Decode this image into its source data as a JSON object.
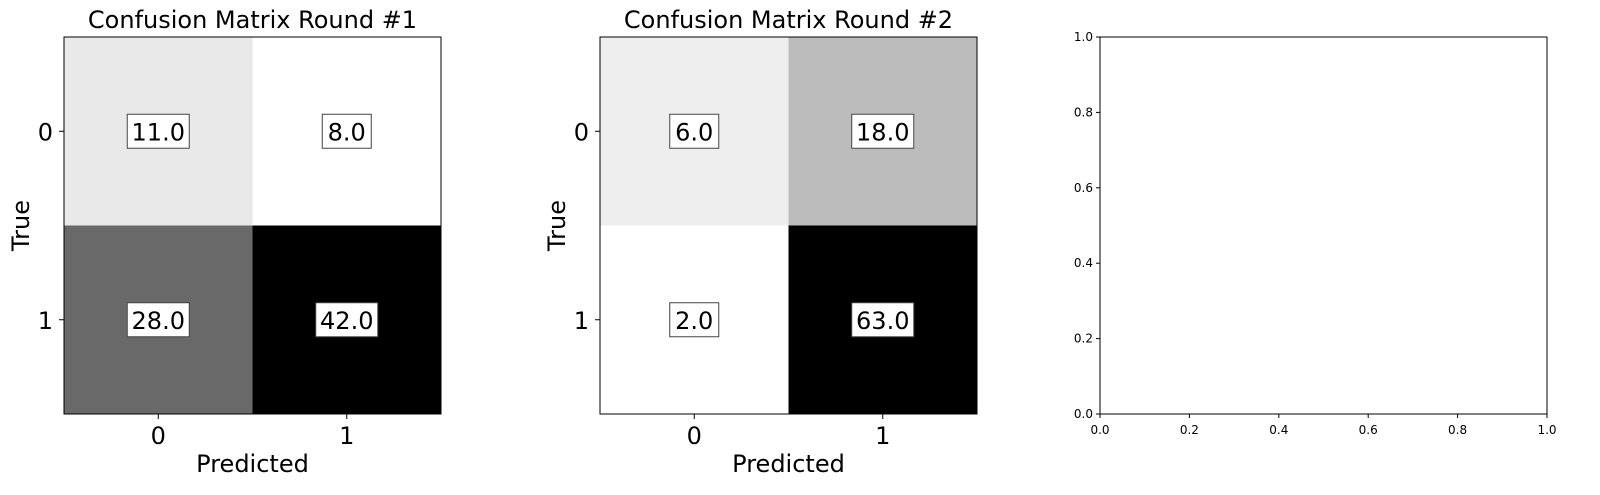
{
  "chart_data": [
    {
      "type": "heatmap",
      "title": "Confusion Matrix Round #1",
      "xlabel": "Predicted",
      "ylabel": "True",
      "x_categories": [
        "0",
        "1"
      ],
      "y_categories": [
        "0",
        "1"
      ],
      "values": [
        [
          11.0,
          8.0
        ],
        [
          28.0,
          42.0
        ]
      ],
      "value_labels": [
        [
          "11.0",
          "8.0"
        ],
        [
          "28.0",
          "42.0"
        ]
      ],
      "colormap": "Greys"
    },
    {
      "type": "heatmap",
      "title": "Confusion Matrix Round #2",
      "xlabel": "Predicted",
      "ylabel": "True",
      "x_categories": [
        "0",
        "1"
      ],
      "y_categories": [
        "0",
        "1"
      ],
      "values": [
        [
          6.0,
          18.0
        ],
        [
          2.0,
          63.0
        ]
      ],
      "value_labels": [
        [
          "6.0",
          "18.0"
        ],
        [
          "2.0",
          "63.0"
        ]
      ],
      "colormap": "Greys"
    },
    {
      "type": "scatter",
      "title": "",
      "xlabel": "",
      "ylabel": "",
      "xlim": [
        0.0,
        1.0
      ],
      "ylim": [
        0.0,
        1.0
      ],
      "xticks": [
        "0.0",
        "0.2",
        "0.4",
        "0.6",
        "0.8",
        "1.0"
      ],
      "yticks": [
        "0.0",
        "0.2",
        "0.4",
        "0.6",
        "0.8",
        "1.0"
      ],
      "series": []
    }
  ]
}
